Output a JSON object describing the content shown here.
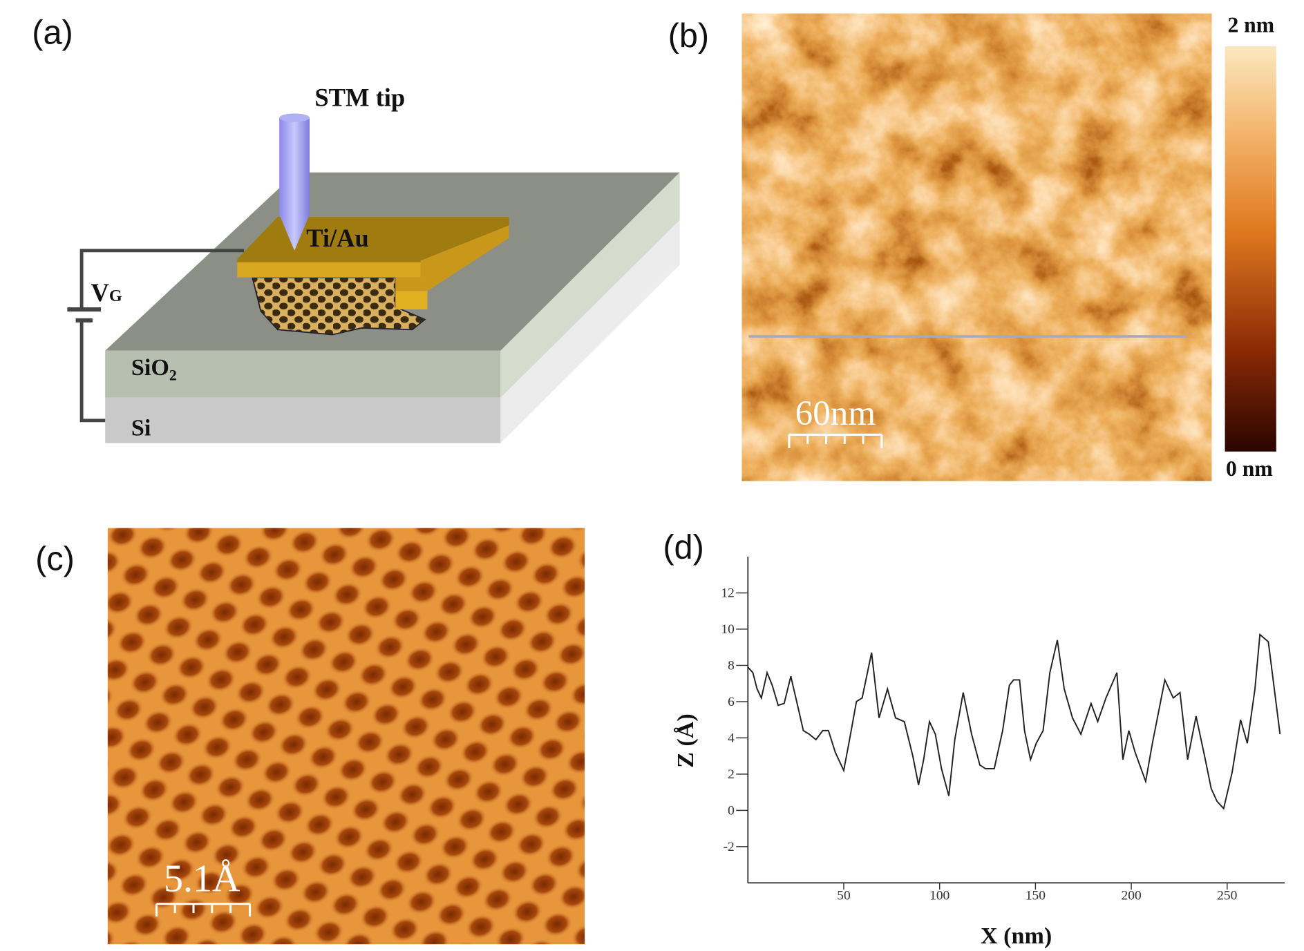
{
  "panels": {
    "a": {
      "label": "(a)",
      "tip": "STM tip",
      "electrode": "Ti/Au",
      "gate": {
        "main": "V",
        "sub": "G"
      },
      "oxide": {
        "main": "SiO",
        "sub": "2"
      },
      "substrate": "Si"
    },
    "b": {
      "label": "(b)",
      "colorbar_max": "2 nm",
      "colorbar_min": "0 nm",
      "scale_bar": "60nm"
    },
    "c": {
      "label": "(c)",
      "scale_bar": "5.1Å"
    },
    "d": {
      "label": "(d)"
    }
  },
  "chart_data": {
    "type": "line",
    "xlabel": "X (nm)",
    "ylabel": "Z (Å)",
    "xlim": [
      0,
      280
    ],
    "ylim": [
      -4,
      14
    ],
    "xticks": [
      50,
      100,
      150,
      200,
      250
    ],
    "yticks": [
      -2,
      0,
      2,
      4,
      6,
      8,
      10,
      12
    ],
    "x": [
      0,
      2.6,
      4.8,
      7,
      10,
      12.7,
      15.8,
      18.9,
      22.4,
      25.9,
      28.9,
      32,
      35.5,
      39,
      42,
      45.6,
      50,
      53,
      56.6,
      59.6,
      64.5,
      68.4,
      72.8,
      77,
      81.6,
      86,
      89,
      91.7,
      94.7,
      97.8,
      101,
      104.8,
      107.9,
      112.3,
      116.7,
      121,
      124,
      128.5,
      132.9,
      136.4,
      138.6,
      141.7,
      144.3,
      147.4,
      150.4,
      154,
      157.5,
      161.4,
      165,
      169.3,
      173.7,
      179,
      182.5,
      186.8,
      192.5,
      195.6,
      198.7,
      202,
      207.5,
      211,
      217.5,
      221.9,
      225.4,
      229.4,
      233.8,
      238.2,
      241.7,
      244.7,
      248.2,
      252.6,
      257,
      260.5,
      264.5,
      267.1,
      271.5,
      274.6,
      277.6
    ],
    "series": [
      {
        "name": "Z",
        "color": "#222222",
        "values": [
          7.9,
          7.6,
          6.7,
          6.2,
          7.6,
          6.9,
          5.8,
          5.9,
          7.4,
          5.8,
          4.4,
          4.2,
          3.9,
          4.4,
          4.4,
          3.2,
          2.2,
          3.9,
          6.0,
          6.2,
          8.7,
          5.1,
          6.7,
          5.1,
          4.9,
          3.0,
          1.4,
          2.8,
          4.9,
          4.2,
          2.3,
          0.8,
          3.9,
          6.5,
          4.2,
          2.5,
          2.3,
          2.3,
          4.4,
          6.9,
          7.2,
          7.2,
          4.4,
          2.8,
          3.7,
          4.4,
          7.6,
          9.4,
          6.7,
          5.1,
          4.2,
          5.9,
          4.9,
          6.2,
          7.6,
          2.8,
          4.4,
          3.2,
          1.6,
          3.7,
          7.2,
          6.2,
          6.5,
          2.8,
          5.2,
          3.0,
          1.2,
          0.5,
          0.1,
          2.1,
          5.0,
          3.7,
          6.7,
          9.7,
          9.3,
          6.7,
          4.2
        ]
      }
    ]
  }
}
